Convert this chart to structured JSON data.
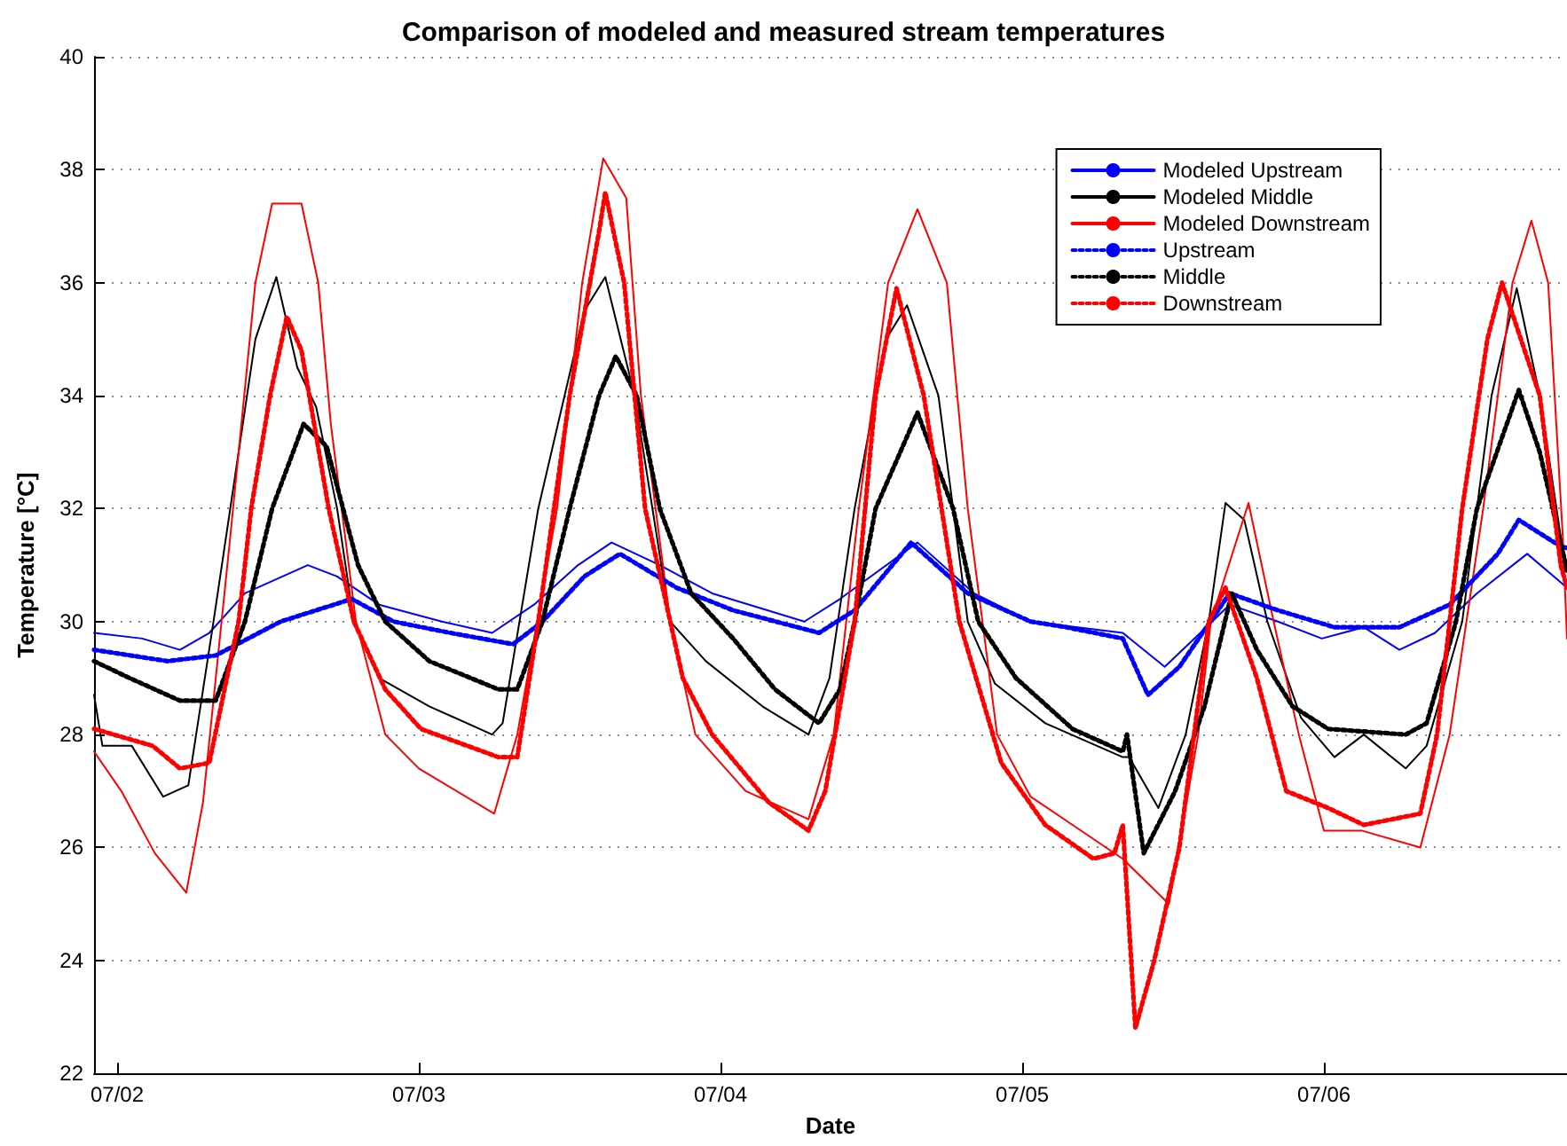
{
  "chart_data": {
    "type": "line",
    "title": "Comparison of modeled and measured stream temperatures",
    "xlabel": "Date",
    "ylabel": "Temperature [°C]",
    "xlim": [
      "--07-01T22:10",
      "--07-06T19:20"
    ],
    "xticks": [
      {
        "value": "--07-02",
        "label": "07/02"
      },
      {
        "value": "--07-03",
        "label": "07/03"
      },
      {
        "value": "--07-04",
        "label": "07/04"
      },
      {
        "value": "--07-05",
        "label": "07/05"
      },
      {
        "value": "--07-06",
        "label": "07/06"
      }
    ],
    "ylim": [
      22,
      40
    ],
    "yticks": [
      22,
      24,
      26,
      28,
      30,
      32,
      34,
      36,
      38,
      40
    ],
    "grid": "y",
    "legend": "top right",
    "marker": "none",
    "series": [
      {
        "name": "Modeled Upstream",
        "color": "#0000ff",
        "line_style": "solid",
        "x": [
          "--07-01T22:10",
          "--07-02T02:00",
          "--07-02T05:00",
          "--07-02T07:20",
          "--07-02T10:10",
          "--07-02T15:10",
          "--07-02T17:30",
          "--07-02T20:50",
          "--07-03T01:50",
          "--07-03T05:50",
          "--07-03T09:10",
          "--07-03T12:40",
          "--07-03T15:20",
          "--07-03T19:10",
          "--07-03T23:20",
          "--07-04T06:40",
          "--07-04T09:30",
          "--07-04T15:40",
          "--07-04T20:10",
          "--07-05T00:40",
          "--07-05T08:00",
          "--07-05T11:20",
          "--07-05T14:10",
          "--07-05T16:30",
          "--07-05T20:20",
          "--07-05T23:50",
          "--07-06T03:10",
          "--07-06T06:00",
          "--07-06T08:50",
          "--07-06T12:10",
          "--07-06T16:10",
          "--07-06T19:20"
        ],
        "values": [
          29.8,
          29.7,
          29.5,
          29.8,
          30.5,
          31.0,
          30.8,
          30.3,
          30.0,
          29.8,
          30.3,
          31.0,
          31.4,
          31.0,
          30.5,
          30.0,
          30.4,
          31.4,
          30.5,
          30.0,
          29.8,
          29.2,
          29.8,
          30.3,
          30.0,
          29.7,
          29.9,
          29.5,
          29.8,
          30.5,
          31.2,
          30.6
        ]
      },
      {
        "name": "Modeled Middle",
        "color": "#000000",
        "line_style": "solid",
        "x": [
          "--07-01T22:10",
          "--07-01T22:50",
          "--07-02T01:10",
          "--07-02T03:40",
          "--07-02T05:40",
          "--07-02T07:40",
          "--07-02T09:40",
          "--07-02T11:00",
          "--07-02T12:40",
          "--07-02T14:20",
          "--07-02T15:50",
          "--07-02T17:30",
          "--07-02T18:50",
          "--07-02T20:50",
          "--07-03T00:50",
          "--07-03T05:50",
          "--07-03T06:40",
          "--07-03T09:30",
          "--07-03T13:10",
          "--07-03T14:50",
          "--07-03T17:10",
          "--07-03T20:00",
          "--07-03T22:50",
          "--07-04T03:20",
          "--07-04T07:00",
          "--07-04T08:40",
          "--07-04T10:40",
          "--07-04T13:10",
          "--07-04T14:50",
          "--07-04T17:20",
          "--07-04T19:40",
          "--07-04T21:50",
          "--07-05T01:50",
          "--07-05T08:00",
          "--07-05T08:30",
          "--07-05T10:50",
          "--07-05T13:00",
          "--07-05T14:50",
          "--07-05T16:10",
          "--07-05T17:40",
          "--07-05T19:30",
          "--07-05T22:10",
          "--07-06T00:50",
          "--07-06T03:10",
          "--07-06T06:30",
          "--07-06T08:10",
          "--07-06T11:00",
          "--07-06T13:20",
          "--07-06T15:20",
          "--07-06T17:10",
          "--07-06T18:50",
          "--07-06T19:20"
        ],
        "values": [
          28.7,
          27.8,
          27.8,
          26.9,
          27.1,
          30.0,
          33.0,
          35.0,
          36.1,
          34.5,
          33.8,
          32.0,
          30.0,
          29.0,
          28.5,
          28.0,
          28.2,
          32.0,
          35.5,
          36.1,
          34.0,
          30.0,
          29.3,
          28.5,
          28.0,
          29.0,
          32.0,
          35.0,
          35.6,
          34.0,
          30.0,
          28.9,
          28.2,
          27.6,
          27.6,
          26.7,
          28.0,
          30.0,
          32.1,
          31.8,
          30.0,
          28.3,
          27.6,
          28.0,
          27.4,
          27.8,
          30.0,
          34.0,
          35.9,
          34.0,
          31.5,
          31.0
        ]
      },
      {
        "name": "Modeled Downstream",
        "color": "#ff0000",
        "line_style": "solid",
        "x": [
          "--07-01T22:10",
          "--07-02T00:20",
          "--07-02T03:00",
          "--07-02T05:30",
          "--07-02T06:50",
          "--07-02T09:00",
          "--07-02T11:00",
          "--07-02T12:20",
          "--07-02T14:40",
          "--07-02T16:00",
          "--07-02T17:00",
          "--07-02T19:00",
          "--07-02T21:20",
          "--07-03T00:00",
          "--07-03T06:00",
          "--07-03T07:50",
          "--07-03T11:00",
          "--07-03T13:00",
          "--07-03T14:40",
          "--07-03T16:30",
          "--07-03T17:40",
          "--07-03T20:00",
          "--07-03T22:00",
          "--07-04T02:00",
          "--07-04T07:00",
          "--07-04T09:00",
          "--07-04T11:00",
          "--07-04T13:20",
          "--07-04T15:40",
          "--07-04T18:00",
          "--07-04T19:40",
          "--07-04T22:00",
          "--07-05T00:40",
          "--07-05T04:00",
          "--07-05T08:00",
          "--07-05T11:40",
          "--07-05T14:00",
          "--07-05T15:00",
          "--07-05T18:00",
          "--07-05T20:00",
          "--07-05T22:00",
          "--07-06T00:00",
          "--07-06T03:00",
          "--07-06T07:40",
          "--07-06T10:00",
          "--07-06T12:40",
          "--07-06T15:00",
          "--07-06T16:30",
          "--07-06T17:50",
          "--07-06T19:00",
          "--07-06T19:20"
        ],
        "values": [
          27.7,
          27.0,
          25.9,
          25.2,
          26.8,
          31.5,
          36.0,
          37.4,
          37.4,
          36.0,
          33.5,
          30.0,
          28.0,
          27.4,
          26.6,
          28.0,
          32.0,
          36.0,
          38.2,
          37.5,
          34.0,
          30.0,
          28.0,
          27.0,
          26.5,
          28.0,
          32.0,
          36.0,
          37.3,
          36.0,
          32.0,
          28.0,
          26.9,
          26.4,
          25.8,
          25.0,
          28.0,
          30.0,
          32.1,
          30.0,
          28.0,
          26.3,
          26.3,
          26.0,
          28.0,
          32.0,
          36.0,
          37.1,
          36.0,
          31.5,
          29.7
        ]
      },
      {
        "name": "Upstream",
        "color": "#0000ff",
        "line_style": "dotted",
        "x": [
          "--07-01T22:10",
          "--07-02T04:00",
          "--07-02T07:50",
          "--07-02T13:00",
          "--07-02T18:40",
          "--07-02T22:00",
          "--07-03T02:30",
          "--07-03T07:30",
          "--07-03T09:50",
          "--07-03T13:10",
          "--07-03T16:00",
          "--07-03T20:30",
          "--07-04T01:00",
          "--07-04T07:50",
          "--07-04T10:40",
          "--07-04T15:10",
          "--07-04T19:40",
          "--07-05T00:40",
          "--07-05T03:30",
          "--07-05T08:00",
          "--07-05T10:00",
          "--07-05T12:30",
          "--07-05T16:30",
          "--07-05T20:20",
          "--07-06T00:50",
          "--07-06T06:00",
          "--07-06T10:00",
          "--07-06T13:50",
          "--07-06T15:30",
          "--07-06T18:20",
          "--07-06T19:20"
        ],
        "values": [
          29.5,
          29.3,
          29.4,
          30.0,
          30.4,
          30.0,
          29.8,
          29.6,
          30.0,
          30.8,
          31.2,
          30.6,
          30.2,
          29.8,
          30.2,
          31.4,
          30.5,
          30.0,
          29.9,
          29.7,
          28.7,
          29.2,
          30.5,
          30.2,
          29.9,
          29.9,
          30.3,
          31.2,
          31.8,
          31.4,
          31.3
        ]
      },
      {
        "name": "Middle",
        "color": "#000000",
        "line_style": "dotted",
        "x": [
          "--07-01T22:10",
          "--07-02T01:00",
          "--07-02T05:00",
          "--07-02T07:50",
          "--07-02T10:10",
          "--07-02T12:20",
          "--07-02T14:50",
          "--07-02T16:40",
          "--07-02T19:10",
          "--07-02T21:20",
          "--07-03T00:50",
          "--07-03T06:20",
          "--07-03T07:50",
          "--07-03T09:50",
          "--07-03T12:00",
          "--07-03T14:20",
          "--07-03T15:40",
          "--07-03T17:20",
          "--07-03T19:10",
          "--07-03T21:40",
          "--07-04T01:00",
          "--07-04T04:20",
          "--07-04T07:50",
          "--07-04T09:30",
          "--07-04T10:40",
          "--07-04T12:20",
          "--07-04T15:40",
          "--07-04T18:30",
          "--07-04T20:30",
          "--07-04T23:30",
          "--07-05T04:00",
          "--07-05T08:00",
          "--07-05T08:20",
          "--07-05T09:40",
          "--07-05T12:10",
          "--07-05T14:30",
          "--07-05T16:40",
          "--07-05T18:40",
          "--07-05T21:30",
          "--07-06T00:20",
          "--07-06T06:30",
          "--07-06T08:10",
          "--07-06T10:30",
          "--07-06T12:10",
          "--07-06T15:30",
          "--07-06T17:10",
          "--07-06T19:20"
        ],
        "values": [
          29.3,
          29.0,
          28.6,
          28.6,
          30.0,
          32.0,
          33.5,
          33.1,
          31.0,
          30.0,
          29.3,
          28.8,
          28.8,
          30.0,
          32.0,
          34.0,
          34.7,
          34.0,
          32.0,
          30.5,
          29.7,
          28.8,
          28.2,
          28.8,
          30.0,
          32.0,
          33.7,
          32.0,
          30.0,
          29.0,
          28.1,
          27.7,
          28.0,
          25.9,
          27.0,
          28.5,
          30.5,
          29.5,
          28.5,
          28.1,
          28.0,
          28.2,
          30.0,
          32.0,
          34.1,
          33.0,
          30.9
        ]
      },
      {
        "name": "Downstream",
        "color": "#ff0000",
        "line_style": "dotted",
        "x": [
          "--07-01T22:10",
          "--07-02T02:50",
          "--07-02T05:00",
          "--07-02T07:20",
          "--07-02T09:40",
          "--07-02T10:40",
          "--07-02T12:10",
          "--07-02T13:30",
          "--07-02T14:40",
          "--07-02T16:50",
          "--07-02T18:50",
          "--07-02T21:20",
          "--07-03T00:10",
          "--07-03T06:20",
          "--07-03T07:50",
          "--07-03T09:30",
          "--07-03T12:00",
          "--07-03T14:20",
          "--07-03T14:50",
          "--07-03T16:20",
          "--07-03T18:00",
          "--07-03T21:00",
          "--07-03T23:20",
          "--07-04T03:50",
          "--07-04T07:00",
          "--07-04T08:20",
          "--07-04T10:40",
          "--07-04T12:20",
          "--07-04T14:00",
          "--07-04T16:10",
          "--07-04T19:00",
          "--07-04T22:20",
          "--07-05T01:50",
          "--07-05T05:40",
          "--07-05T07:20",
          "--07-05T08:00",
          "--07-05T09:00",
          "--07-05T10:30",
          "--07-05T12:30",
          "--07-05T14:50",
          "--07-05T16:10",
          "--07-05T18:40",
          "--07-05T21:00",
          "--07-06T00:20",
          "--07-06T03:10",
          "--07-06T07:40",
          "--07-06T09:00",
          "--07-06T11:00",
          "--07-06T13:00",
          "--07-06T14:10",
          "--07-06T17:10",
          "--07-06T18:50",
          "--07-06T19:20"
        ],
        "values": [
          28.1,
          27.8,
          27.4,
          27.5,
          30.0,
          32.0,
          34.0,
          35.4,
          34.8,
          32.0,
          30.0,
          28.8,
          28.1,
          27.6,
          27.6,
          30.0,
          34.0,
          36.9,
          37.6,
          36.0,
          32.0,
          29.0,
          28.0,
          26.8,
          26.3,
          27.0,
          30.0,
          34.0,
          35.9,
          34.0,
          30.0,
          27.5,
          26.4,
          25.8,
          25.9,
          26.4,
          22.8,
          24.0,
          26.0,
          30.0,
          30.6,
          29.0,
          27.0,
          26.7,
          26.4,
          26.6,
          28.0,
          32.0,
          35.0,
          36.0,
          34.0,
          31.0,
          30.6
        ]
      }
    ]
  }
}
